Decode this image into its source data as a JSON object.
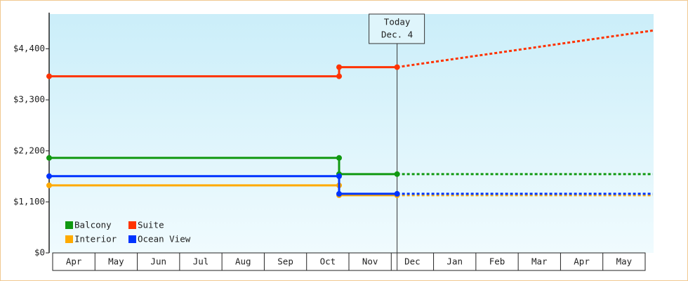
{
  "chart_data": {
    "type": "line",
    "categories": [
      "Apr",
      "May",
      "Jun",
      "Jul",
      "Aug",
      "Sep",
      "Oct",
      "Nov",
      "Dec",
      "Jan",
      "Feb",
      "Mar",
      "Apr",
      "May"
    ],
    "x": [
      -0.08,
      6.77,
      6.77,
      8.14,
      14.18
    ],
    "forecast_from": 3,
    "series": [
      {
        "name": "Balcony",
        "color": "#119911",
        "values": [
          2048,
          2048,
          1699,
          1699,
          1699
        ]
      },
      {
        "name": "Suite",
        "color": "#ff3300",
        "values": [
          3808,
          3808,
          4005,
          4005,
          4794
        ]
      },
      {
        "name": "Interior",
        "color": "#ffaa00",
        "values": [
          1456,
          1456,
          1244,
          1244,
          1244
        ]
      },
      {
        "name": "Ocean View",
        "color": "#0033ff",
        "values": [
          1654,
          1654,
          1274,
          1274,
          1274
        ]
      }
    ],
    "xlim": [
      -0.08,
      14.2
    ],
    "ylim": [
      0,
      5150
    ],
    "yticks": [
      {
        "value": 0,
        "label": "$0"
      },
      {
        "value": 1100,
        "label": "$1,100"
      },
      {
        "value": 2200,
        "label": "$2,200"
      },
      {
        "value": 3300,
        "label": "$3,300"
      },
      {
        "value": 4400,
        "label": "$4,400"
      }
    ],
    "grid": false,
    "legend": "lower left",
    "annotation": {
      "label": "Today",
      "date": "Dec. 4",
      "x": 8.14
    }
  }
}
